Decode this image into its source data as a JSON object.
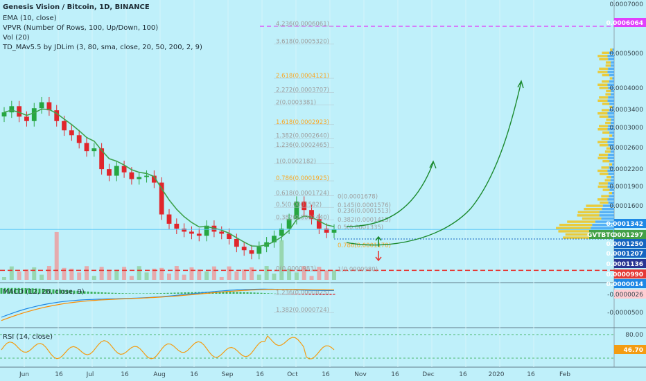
{
  "header": {
    "title": "Genesis Vision / Bitcoin, 1D, BINANCE",
    "indicators": [
      "EMA (10, close)",
      "VPVR (Number Of Rows, 100, Up/Down, 100)",
      "Vol (20)",
      "TD_MAv5.5 by JDLim (3, 80, sma, close, 20, 50, 200, 2, 9)"
    ]
  },
  "panes": {
    "macd_label": "MACD (12, 26, close, 9)",
    "rsi_label": "RSI (14, close)"
  },
  "price_axis": {
    "ticks": [
      "0.0007000",
      "0.0005000",
      "0.0004000",
      "0.0003400",
      "0.0003000",
      "0.0002600",
      "0.0002200",
      "0.0001900",
      "0.0001600"
    ],
    "badges": [
      {
        "text": "0.0006064",
        "color": "#e040fb"
      },
      {
        "text": "0.0001342",
        "color": "#1e88e5"
      },
      {
        "text": "0.0001297",
        "color": "#43a047",
        "tag": "GVTBTC"
      },
      {
        "text": "0.0001250",
        "color": "#1565c0"
      },
      {
        "text": "0.0001207",
        "color": "#1565c0"
      },
      {
        "text": "0.0001136",
        "color": "#283593"
      },
      {
        "text": "0.0000990",
        "color": "#e53935"
      },
      {
        "text": "0.0000014",
        "color": "#1e88e5"
      }
    ]
  },
  "macd_axis": {
    "ticks": [
      "-0.0000026",
      "-0.0000500"
    ]
  },
  "rsi_axis": {
    "ticks": [
      "80.00",
      "46.70"
    ]
  },
  "time_axis": {
    "labels": [
      "Jun",
      "16",
      "Jul",
      "16",
      "Aug",
      "16",
      "Sep",
      "16",
      "Oct",
      "16",
      "Nov",
      "16",
      "Dec",
      "16",
      "2020",
      "16",
      "Feb"
    ]
  },
  "fib_levels": [
    {
      "label": "4.236(0.0006061)",
      "color": "#9e9e9e"
    },
    {
      "label": "3.618(0.0005320)",
      "color": "#9e9e9e"
    },
    {
      "label": "2.618(0.0004121)",
      "color": "#f9a825"
    },
    {
      "label": "2.272(0.0003707)",
      "color": "#9e9e9e"
    },
    {
      "label": "2(0.0003381)",
      "color": "#9e9e9e"
    },
    {
      "label": "1.618(0.0002923)",
      "color": "#f9a825"
    },
    {
      "label": "1.382(0.0002640)",
      "color": "#9e9e9e"
    },
    {
      "label": "1.236(0.0002465)",
      "color": "#9e9e9e"
    },
    {
      "label": "1(0.0002182)",
      "color": "#9e9e9e"
    },
    {
      "label": "0.786(0.0001925)",
      "color": "#f9a825"
    },
    {
      "label": "0.618(0.0001724)",
      "color": "#9e9e9e"
    },
    {
      "label": "0.5(0.0001582)",
      "color": "#9e9e9e"
    },
    {
      "label": "0.382(0.0001440)",
      "color": "#9e9e9e"
    },
    {
      "label": "0(0.0000983)",
      "color": "#9e9e9e"
    },
    {
      "label": "1.236(0.0000825)",
      "color": "#9e9e9e"
    },
    {
      "label": "1.382(0.0000724)",
      "color": "#9e9e9e"
    }
  ],
  "fib_right": [
    {
      "label": "0(0.0001678)",
      "color": "#9e9e9e"
    },
    {
      "label": "0.145(0.0001576)",
      "color": "#9e9e9e"
    },
    {
      "label": "0.236(0.0001513)",
      "color": "#9e9e9e"
    },
    {
      "label": "0.382(0.0001415)",
      "color": "#9e9e9e"
    },
    {
      "label": "0.5(0.0001335)",
      "color": "#9e9e9e"
    },
    {
      "label": "0.786(0.0001170)",
      "color": "#f9a825"
    },
    {
      "label": "1(0.0000980)",
      "color": "#9e9e9e"
    }
  ],
  "colors": {
    "bg": "#bff0fa",
    "up": "#26a641",
    "down": "#e0262c",
    "ema": "#3fa34d",
    "macd": "#1e88e5",
    "signal": "#fb8c00",
    "rsi": "#f39c12",
    "target": "#e040fb",
    "support": "#e53935",
    "arrow": "#1b8a2e"
  },
  "chart_data": {
    "type": "candlestick",
    "title": "Genesis Vision / Bitcoin, 1D, BINANCE",
    "x_range": [
      "2019-05-27",
      "2020-02-20"
    ],
    "ylim": [
      7e-05,
      0.0007
    ],
    "y_scale": "log",
    "series": [
      {
        "name": "GVTBTC close",
        "values": [
          0.00032,
          0.000335,
          0.00031,
          0.0003,
          0.00033,
          0.000345,
          0.000325,
          0.0003,
          0.00028,
          0.00027,
          0.000255,
          0.00024,
          0.000245,
          0.00021,
          0.0002,
          0.000215,
          0.000205,
          0.000195,
          0.000198,
          0.0002,
          0.00019,
          0.00015,
          0.00014,
          0.000135,
          0.000132,
          0.00013,
          0.000128,
          0.000138,
          0.000132,
          0.00013,
          0.000125,
          0.000118,
          0.000115,
          0.000112,
          0.000118,
          0.000122,
          0.000128,
          0.000135,
          0.000145,
          0.000165,
          0.000155,
          0.000145,
          0.000135,
          0.000131,
          0.000134
        ]
      }
    ],
    "horizontal_levels": [
      {
        "name": "target",
        "value": 0.0006064
      },
      {
        "name": "support",
        "value": 9.9e-05
      }
    ],
    "macd": {
      "name": "MACD (12, 26, close, 9)",
      "current": -2.6e-06
    },
    "rsi": {
      "name": "RSI (14, close)",
      "current": 46.7,
      "upper": 80.0
    }
  }
}
